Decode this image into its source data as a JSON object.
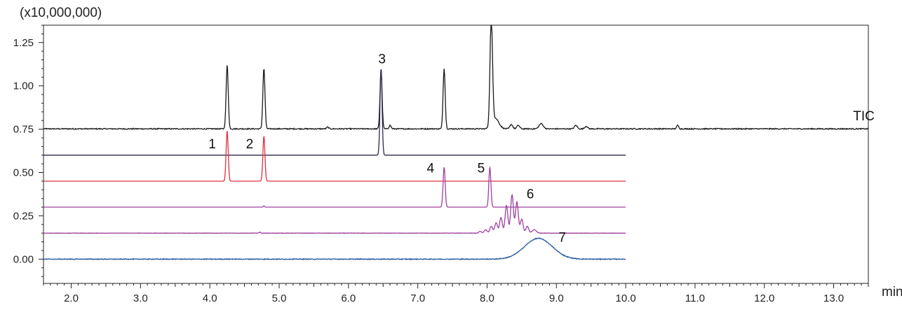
{
  "chart_data": {
    "type": "line",
    "y_unit_label": "(x10,000,000)",
    "x_unit_label": "min",
    "xlim": [
      1.6,
      13.5
    ],
    "ylim": [
      -0.14,
      1.35
    ],
    "x_ticks": [
      2.0,
      3.0,
      4.0,
      5.0,
      6.0,
      7.0,
      8.0,
      9.0,
      10.0,
      11.0,
      12.0,
      13.0
    ],
    "x_tick_labels": [
      "2.0",
      "3.0",
      "4.0",
      "5.0",
      "6.0",
      "7.0",
      "8.0",
      "9.0",
      "10.0",
      "11.0",
      "12.0",
      "13.0"
    ],
    "y_ticks": [
      0.0,
      0.25,
      0.5,
      0.75,
      1.0,
      1.25
    ],
    "y_tick_labels": [
      "0.00",
      "0.25",
      "0.50",
      "0.75",
      "1.00",
      "1.25"
    ],
    "grid": false,
    "series": [
      {
        "name": "TIC",
        "color": "#1a1a1a",
        "x_range": [
          1.6,
          13.5
        ],
        "baseline": 0.752,
        "noise": 0.006,
        "peaks": [
          {
            "rt": 4.25,
            "height": 0.37,
            "width": 0.015
          },
          {
            "rt": 4.78,
            "height": 0.35,
            "width": 0.015
          },
          {
            "rt": 6.47,
            "height": 0.34,
            "width": 0.015
          },
          {
            "rt": 7.38,
            "height": 0.35,
            "width": 0.015
          },
          {
            "rt": 8.06,
            "height": 0.62,
            "width": 0.018
          },
          {
            "rt": 8.12,
            "height": 0.06,
            "width": 0.05
          },
          {
            "rt": 8.35,
            "height": 0.025,
            "width": 0.02
          },
          {
            "rt": 8.45,
            "height": 0.02,
            "width": 0.02
          },
          {
            "rt": 8.78,
            "height": 0.03,
            "width": 0.03
          },
          {
            "rt": 9.28,
            "height": 0.02,
            "width": 0.02
          },
          {
            "rt": 9.43,
            "height": 0.015,
            "width": 0.02
          },
          {
            "rt": 10.75,
            "height": 0.02,
            "width": 0.015
          },
          {
            "rt": 6.6,
            "height": 0.02,
            "width": 0.015
          },
          {
            "rt": 5.7,
            "height": 0.01,
            "width": 0.015
          }
        ]
      },
      {
        "name": "3",
        "color": "#2b2b4a",
        "x_range": [
          1.6,
          10.0
        ],
        "baseline": 0.6,
        "noise": 0.0,
        "peaks": [
          {
            "rt": 6.47,
            "height": 0.5,
            "width": 0.015
          }
        ]
      },
      {
        "name": "1, 2",
        "color": "#e03040",
        "x_range": [
          1.6,
          10.0
        ],
        "baseline": 0.45,
        "noise": 0.0,
        "peaks": [
          {
            "rt": 4.25,
            "height": 0.29,
            "width": 0.015
          },
          {
            "rt": 4.78,
            "height": 0.26,
            "width": 0.015
          }
        ]
      },
      {
        "name": "4, 5",
        "color": "#a040a0",
        "x_range": [
          1.6,
          10.0
        ],
        "baseline": 0.3,
        "noise": 0.0,
        "peaks": [
          {
            "rt": 7.38,
            "height": 0.23,
            "width": 0.015
          },
          {
            "rt": 8.04,
            "height": 0.23,
            "width": 0.015
          },
          {
            "rt": 4.78,
            "height": 0.008,
            "width": 0.01
          }
        ]
      },
      {
        "name": "6",
        "color": "#a040a0",
        "x_range": [
          1.6,
          10.0
        ],
        "baseline": 0.15,
        "noise": 0.002,
        "peaks": [
          {
            "rt": 7.9,
            "height": 0.01,
            "width": 0.02
          },
          {
            "rt": 7.98,
            "height": 0.02,
            "width": 0.02
          },
          {
            "rt": 8.06,
            "height": 0.04,
            "width": 0.02
          },
          {
            "rt": 8.13,
            "height": 0.06,
            "width": 0.02
          },
          {
            "rt": 8.2,
            "height": 0.09,
            "width": 0.02
          },
          {
            "rt": 8.28,
            "height": 0.16,
            "width": 0.02
          },
          {
            "rt": 8.36,
            "height": 0.22,
            "width": 0.02
          },
          {
            "rt": 8.43,
            "height": 0.18,
            "width": 0.02
          },
          {
            "rt": 8.5,
            "height": 0.08,
            "width": 0.02
          },
          {
            "rt": 8.58,
            "height": 0.04,
            "width": 0.02
          },
          {
            "rt": 8.68,
            "height": 0.02,
            "width": 0.03
          },
          {
            "rt": 4.72,
            "height": 0.006,
            "width": 0.01
          }
        ]
      },
      {
        "name": "7",
        "color": "#2a5aa0",
        "x_range": [
          1.6,
          10.0
        ],
        "baseline": 0.0,
        "noise": 0.004,
        "peaks": [
          {
            "rt": 8.74,
            "height": 0.12,
            "width": 0.2
          }
        ]
      }
    ],
    "annotations": [
      {
        "text": "TIC",
        "x": 13.28,
        "y": 0.8
      },
      {
        "text": "1",
        "x": 3.98,
        "y": 0.64
      },
      {
        "text": "2",
        "x": 4.52,
        "y": 0.64
      },
      {
        "text": "3",
        "x": 6.43,
        "y": 1.13
      },
      {
        "text": "4",
        "x": 7.13,
        "y": 0.5
      },
      {
        "text": "5",
        "x": 7.86,
        "y": 0.5
      },
      {
        "text": "6",
        "x": 8.57,
        "y": 0.35
      },
      {
        "text": "7",
        "x": 9.03,
        "y": 0.1
      }
    ]
  }
}
